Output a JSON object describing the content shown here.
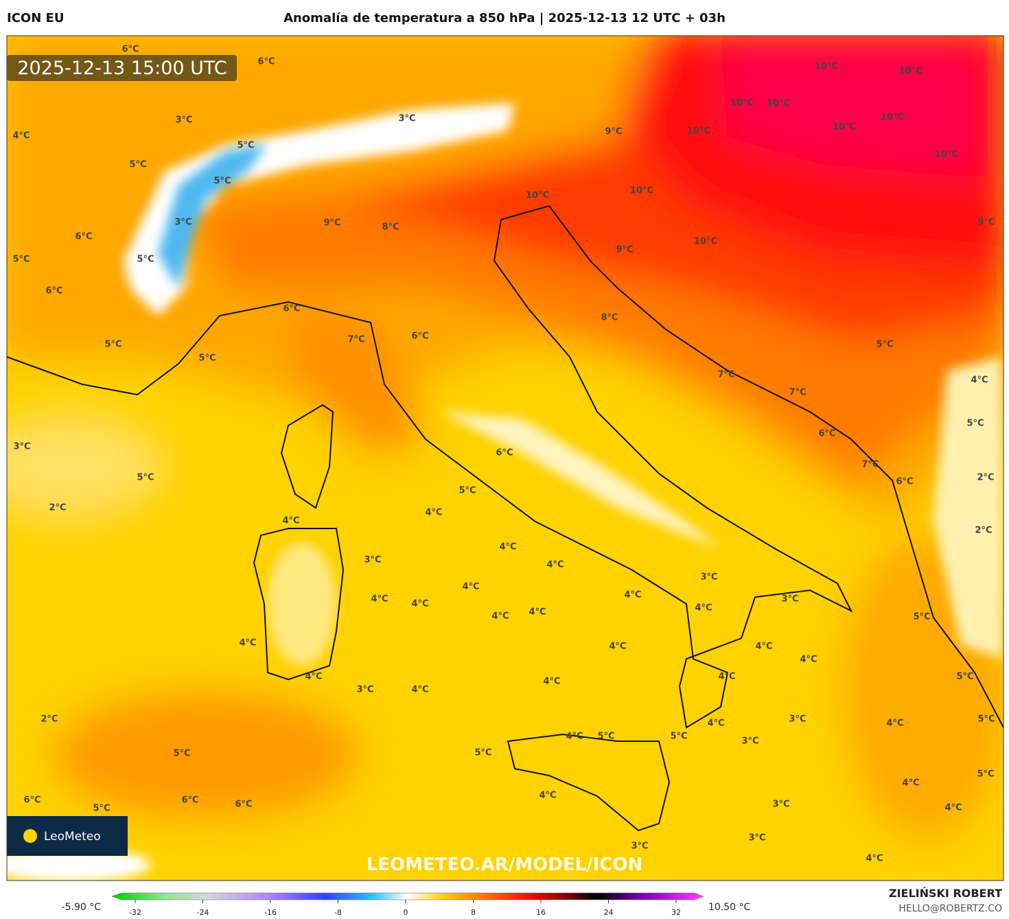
{
  "header": {
    "model": "ICON EU",
    "title": "Anomalía de temperatura a 850 hPa | 2025-12-13 12 UTC + 03h"
  },
  "map": {
    "timestamp": "2025-12-13 15:00 UTC",
    "watermark": "LEOMETEO.AR/MODEL/ICON",
    "logo": "LeoMeteo",
    "labels": [
      "6°C",
      "6°C",
      "4°C",
      "3°C",
      "5°C",
      "3°C",
      "5°C",
      "5°C",
      "3°C",
      "6°C",
      "5°C",
      "5°C",
      "6°C",
      "5°C",
      "5°C",
      "6°C",
      "7°C",
      "6°C",
      "9°C",
      "8°C",
      "10°C",
      "9°C",
      "10°C",
      "10°C",
      "10°C",
      "10°C",
      "10°C",
      "10°C",
      "10°C",
      "10°C",
      "10°C",
      "9°C",
      "10°C",
      "9°C",
      "8°C",
      "7°C",
      "7°C",
      "6°C",
      "7°C",
      "6°C",
      "5°C",
      "4°C",
      "5°C",
      "2°C",
      "2°C",
      "5°C",
      "5°C",
      "5°C",
      "5°C",
      "4°C",
      "4°C",
      "4°C",
      "4°C",
      "3°C",
      "4°C",
      "4°C",
      "4°C",
      "3°C",
      "4°C",
      "4°C",
      "4°C",
      "3°C",
      "4°C",
      "3°C",
      "3°C",
      "3°C",
      "3°C",
      "5°C",
      "5°C",
      "4°C",
      "4°C",
      "5°C",
      "4°C",
      "4°C",
      "3°C",
      "4°C",
      "4°C",
      "4°C",
      "4°C",
      "4°C",
      "4°C",
      "4°C",
      "4°C",
      "4°C",
      "3°C",
      "4°C",
      "4°C",
      "5°C",
      "5°C",
      "3°C",
      "2°C",
      "2°C",
      "5°C",
      "6°C",
      "5°C",
      "6°C",
      "6°C",
      "6°C"
    ]
  },
  "colorbar": {
    "min_label": "-5.90 °C",
    "max_label": "10.50 °C",
    "ticks": [
      -32,
      -24,
      -16,
      -8,
      0,
      8,
      16,
      24,
      32
    ]
  },
  "credits": {
    "author": "ZIELIŃSKI ROBERT",
    "email": "HELLO@ROBERTZ.CO"
  }
}
